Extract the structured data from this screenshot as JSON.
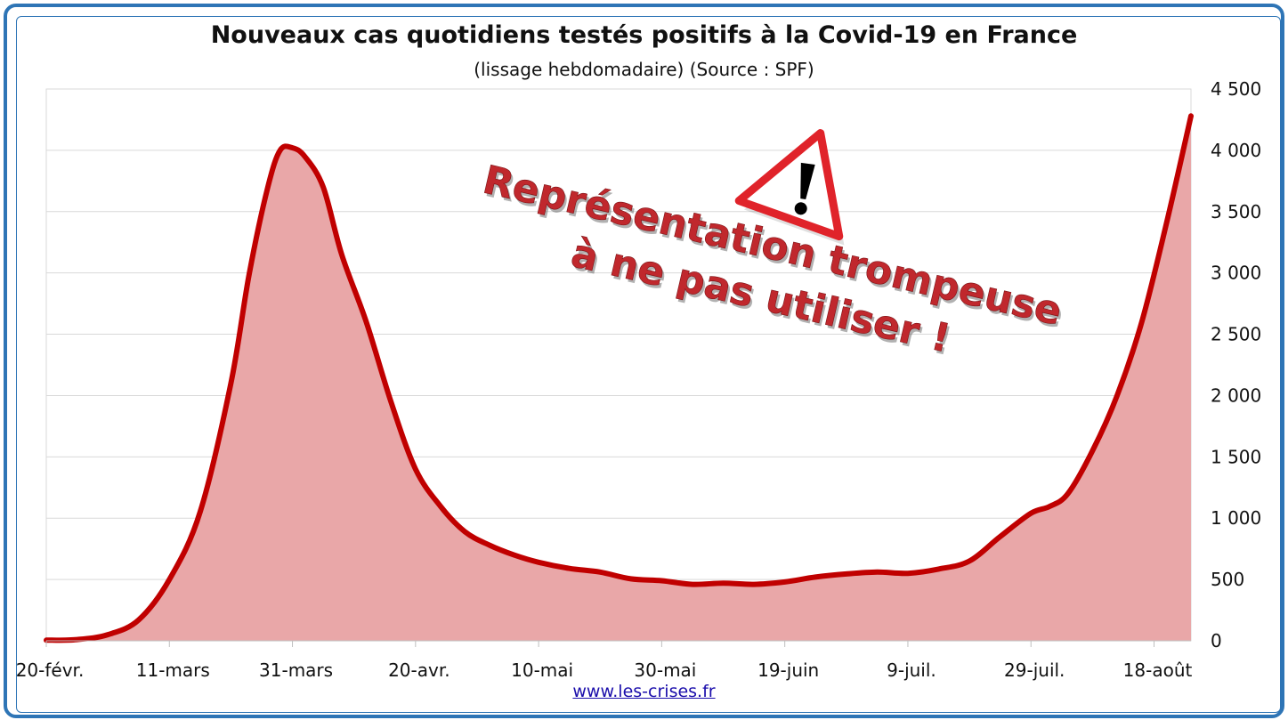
{
  "chart_data": {
    "type": "area",
    "title": "Nouveaux cas quotidiens testés positifs à la Covid-19 en France",
    "subtitle": "(lissage hebdomadaire) (Source : SPF)",
    "xlabel": "",
    "ylabel": "",
    "x_ticks": [
      "20-févr.",
      "11-mars",
      "31-mars",
      "20-avr.",
      "10-mai",
      "30-mai",
      "19-juin",
      "9-juil.",
      "29-juil.",
      "18-août"
    ],
    "y_ticks": [
      "0",
      "500",
      "1 000",
      "1 500",
      "2 000",
      "2 500",
      "3 000",
      "3 500",
      "4 000",
      "4 500"
    ],
    "ylim": [
      0,
      4500
    ],
    "y_axis_position": "right",
    "grid": true,
    "legend": "none",
    "series": [
      {
        "color": "#c00000",
        "fill": "#e9a7a8",
        "days": [
          0,
          5,
          10,
          15,
          20,
          25,
          30,
          33,
          36,
          38,
          40,
          42,
          45,
          48,
          52,
          56,
          60,
          64,
          68,
          72,
          76,
          80,
          85,
          90,
          95,
          100,
          105,
          110,
          115,
          120,
          125,
          130,
          135,
          140,
          145,
          150,
          155,
          160,
          163,
          166,
          170,
          174,
          178,
          182,
          186
        ],
        "values": [
          5,
          10,
          50,
          170,
          500,
          1050,
          2100,
          3000,
          3700,
          4000,
          4020,
          3950,
          3700,
          3150,
          2600,
          1950,
          1400,
          1100,
          890,
          780,
          700,
          640,
          590,
          560,
          505,
          490,
          460,
          470,
          460,
          480,
          520,
          545,
          560,
          550,
          585,
          650,
          850,
          1040,
          1095,
          1200,
          1550,
          2000,
          2600,
          3400,
          4280
        ]
      }
    ],
    "annotation": [
      "Représentation trompeuse",
      "à ne pas utiliser !"
    ]
  },
  "footer": {
    "source_link": "www.les-crises.fr"
  }
}
